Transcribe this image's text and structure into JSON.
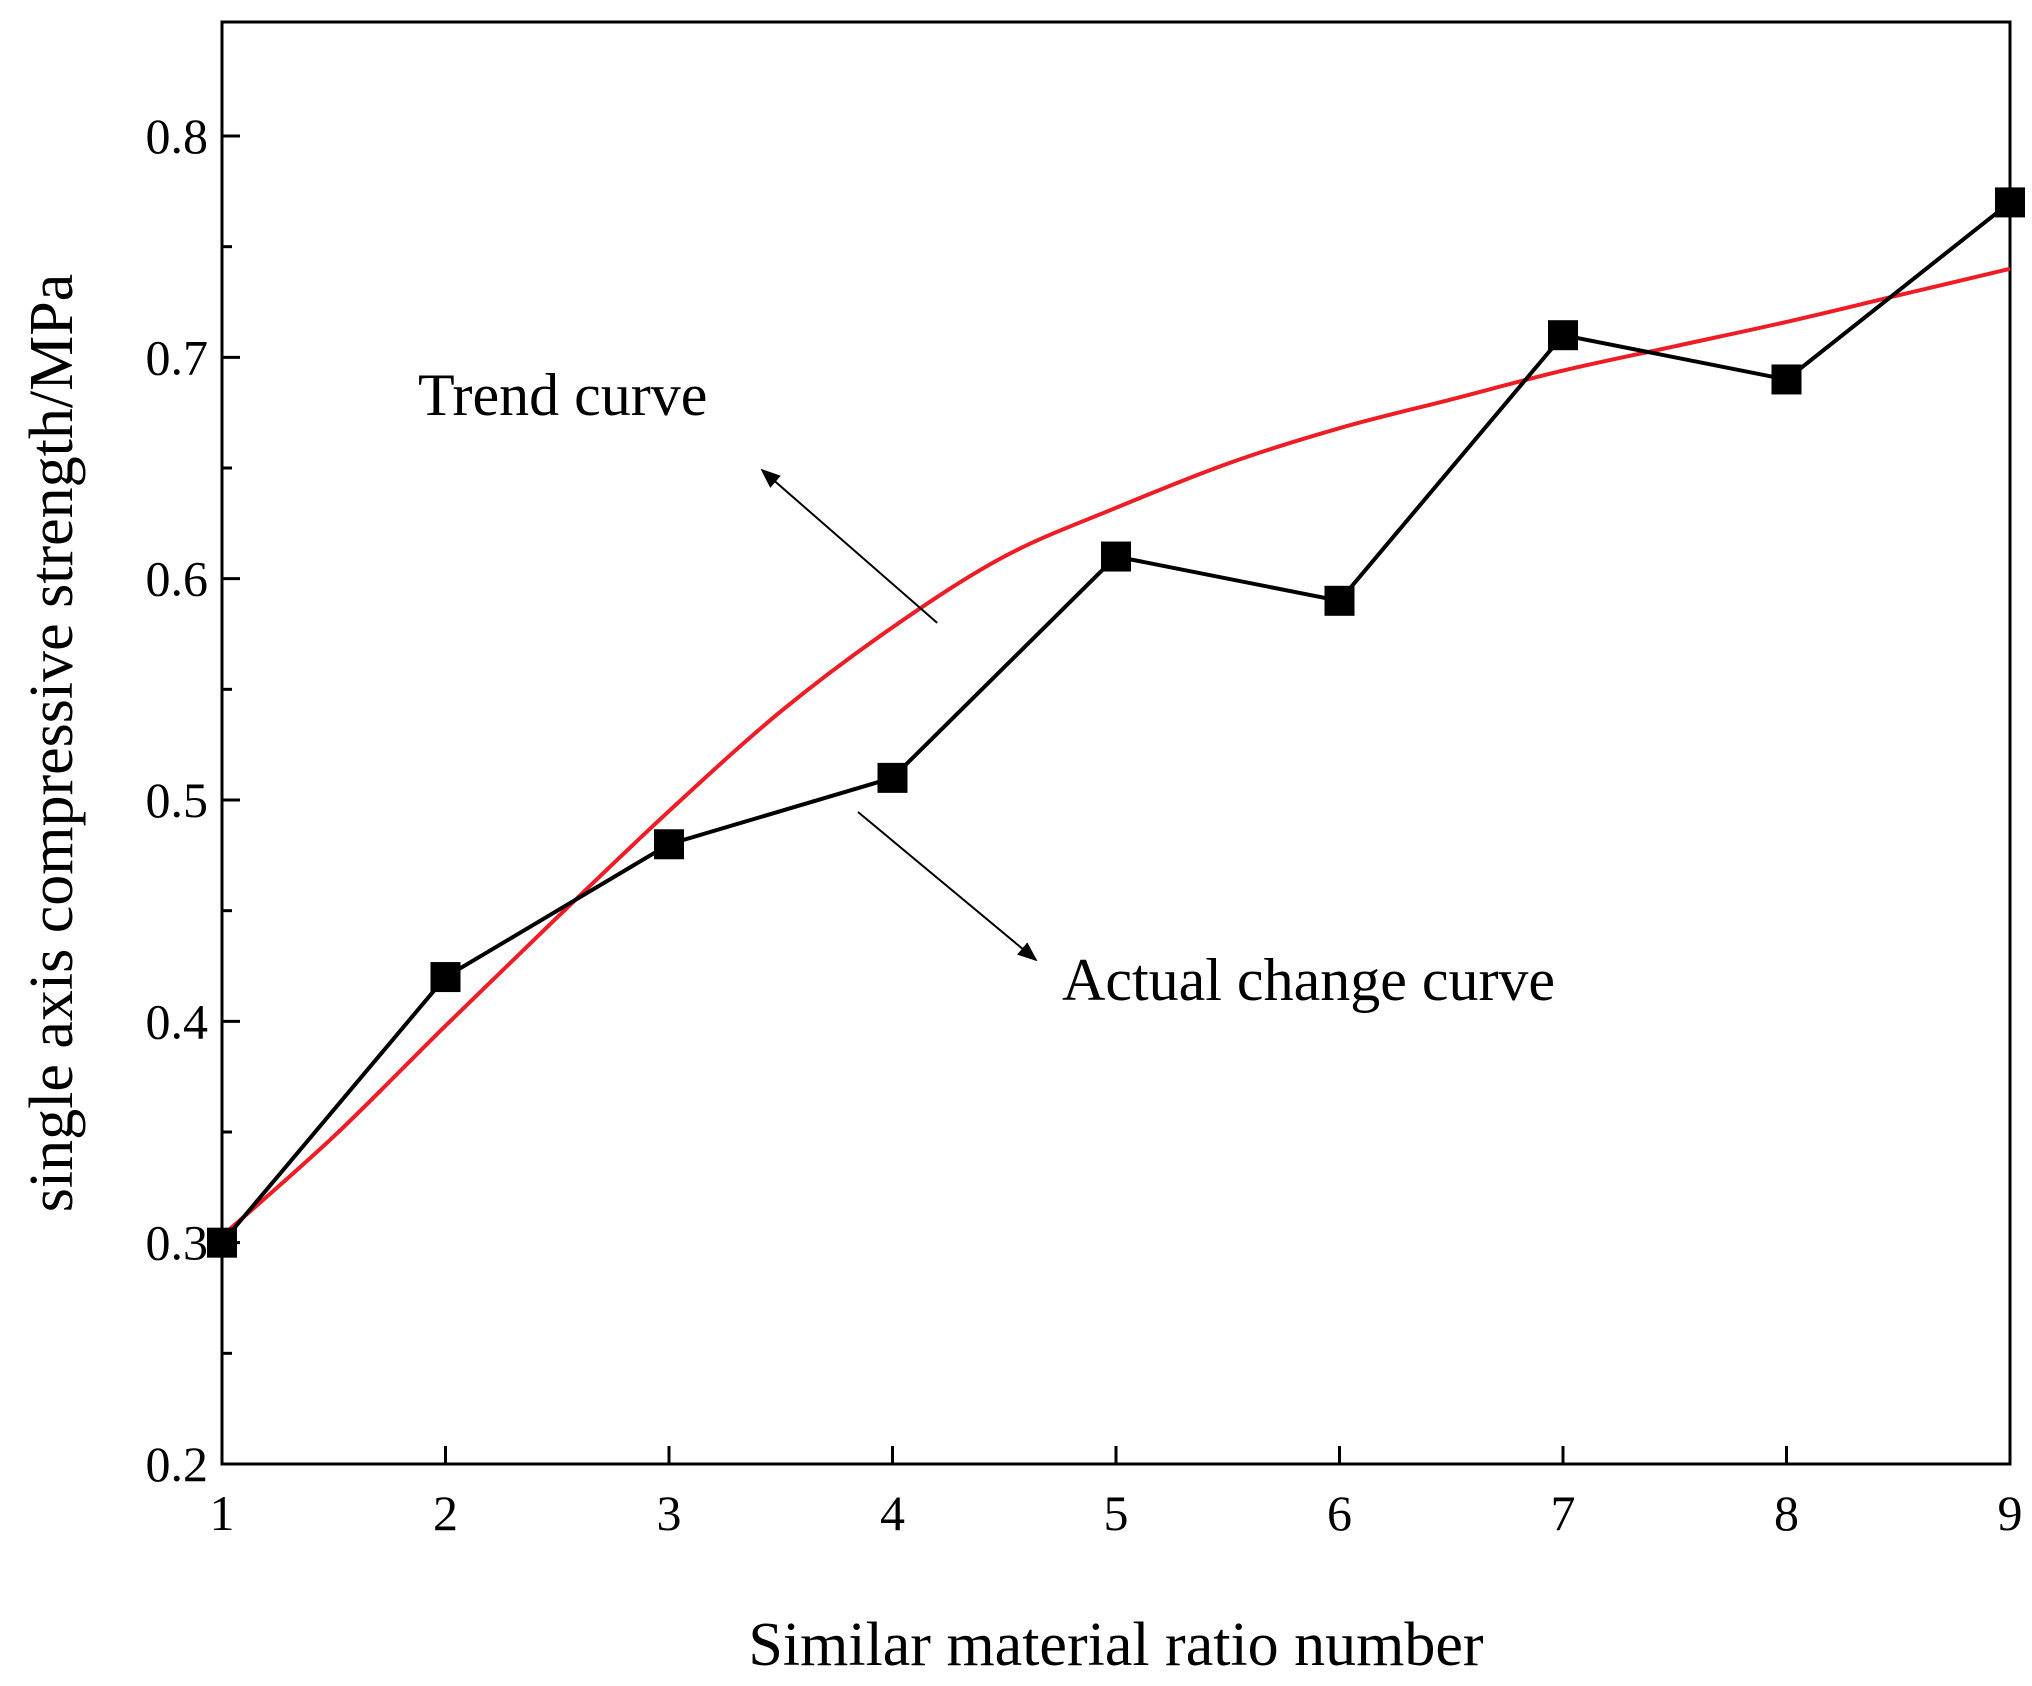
{
  "chart_data": {
    "type": "line",
    "title": "",
    "xlabel": "Similar material ratio number",
    "ylabel": "single axis compressive strength/MPa",
    "xlim": [
      1,
      9
    ],
    "ylim": [
      0.2,
      0.85
    ],
    "x_ticks": [
      1,
      2,
      3,
      4,
      5,
      6,
      7,
      8,
      9
    ],
    "x_tick_labels": [
      "1",
      "2",
      "3",
      "4",
      "5",
      "6",
      "7",
      "8",
      "9"
    ],
    "y_ticks": [
      0.2,
      0.3,
      0.4,
      0.5,
      0.6,
      0.7,
      0.8
    ],
    "y_tick_labels": [
      "0.2",
      "0.3",
      "0.4",
      "0.5",
      "0.6",
      "0.7",
      "0.8"
    ],
    "grid": false,
    "series": [
      {
        "name": "Actual change curve",
        "color": "#000000",
        "marker": "square",
        "x": [
          1,
          2,
          3,
          4,
          5,
          6,
          7,
          8,
          9
        ],
        "values": [
          0.3,
          0.42,
          0.48,
          0.51,
          0.61,
          0.59,
          0.71,
          0.69,
          0.77
        ]
      },
      {
        "name": "Trend curve",
        "color": "#ee1c25",
        "marker": "none",
        "x": [
          1,
          1.5,
          2,
          2.5,
          3,
          3.5,
          4,
          4.5,
          5,
          5.5,
          6,
          6.5,
          7,
          7.5,
          8,
          8.5,
          9
        ],
        "values": [
          0.303,
          0.348,
          0.398,
          0.447,
          0.495,
          0.54,
          0.578,
          0.61,
          0.632,
          0.652,
          0.668,
          0.681,
          0.694,
          0.705,
          0.716,
          0.728,
          0.74
        ]
      }
    ],
    "annotations": [
      {
        "text": "Trend curve",
        "points_to": "Trend curve"
      },
      {
        "text": "Actual change curve",
        "points_to": "Actual change curve"
      }
    ]
  }
}
